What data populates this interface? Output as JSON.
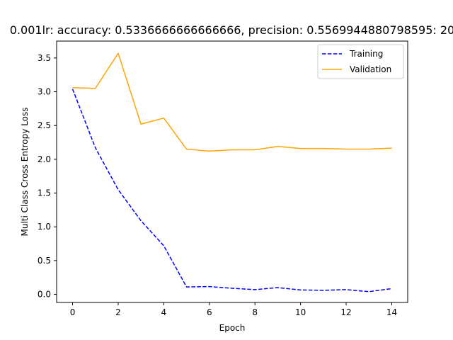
{
  "chart_data": {
    "type": "line",
    "title": "0.001lr: accuracy: 0.5336666666666666, precision: 0.5569944880798595: 20",
    "xlabel": "Epoch",
    "ylabel": "Multi Class Cross Entropy Loss",
    "xlim": [
      -0.7,
      14.7
    ],
    "ylim": [
      -0.12,
      3.75
    ],
    "xticks": [
      0,
      2,
      4,
      6,
      8,
      10,
      12,
      14
    ],
    "xtick_labels": [
      "0",
      "2",
      "4",
      "6",
      "8",
      "10",
      "12",
      "14"
    ],
    "yticks": [
      0.0,
      0.5,
      1.0,
      1.5,
      2.0,
      2.5,
      3.0,
      3.5
    ],
    "ytick_labels": [
      "0.0",
      "0.5",
      "1.0",
      "1.5",
      "2.0",
      "2.5",
      "3.0",
      "3.5"
    ],
    "grid": false,
    "legend_position": "top-right",
    "x": [
      0,
      1,
      2,
      3,
      4,
      5,
      6,
      7,
      8,
      9,
      10,
      11,
      12,
      13,
      14
    ],
    "series": [
      {
        "name": "Training",
        "color": "#0000ff",
        "style": "dashed",
        "values": [
          3.04,
          2.17,
          1.55,
          1.09,
          0.72,
          0.11,
          0.115,
          0.09,
          0.07,
          0.1,
          0.065,
          0.06,
          0.07,
          0.04,
          0.085
        ]
      },
      {
        "name": "Validation",
        "color": "#ffa500",
        "style": "solid",
        "values": [
          3.06,
          3.05,
          3.57,
          2.52,
          2.61,
          2.15,
          2.12,
          2.14,
          2.14,
          2.19,
          2.16,
          2.16,
          2.15,
          2.15,
          2.165
        ]
      }
    ]
  }
}
